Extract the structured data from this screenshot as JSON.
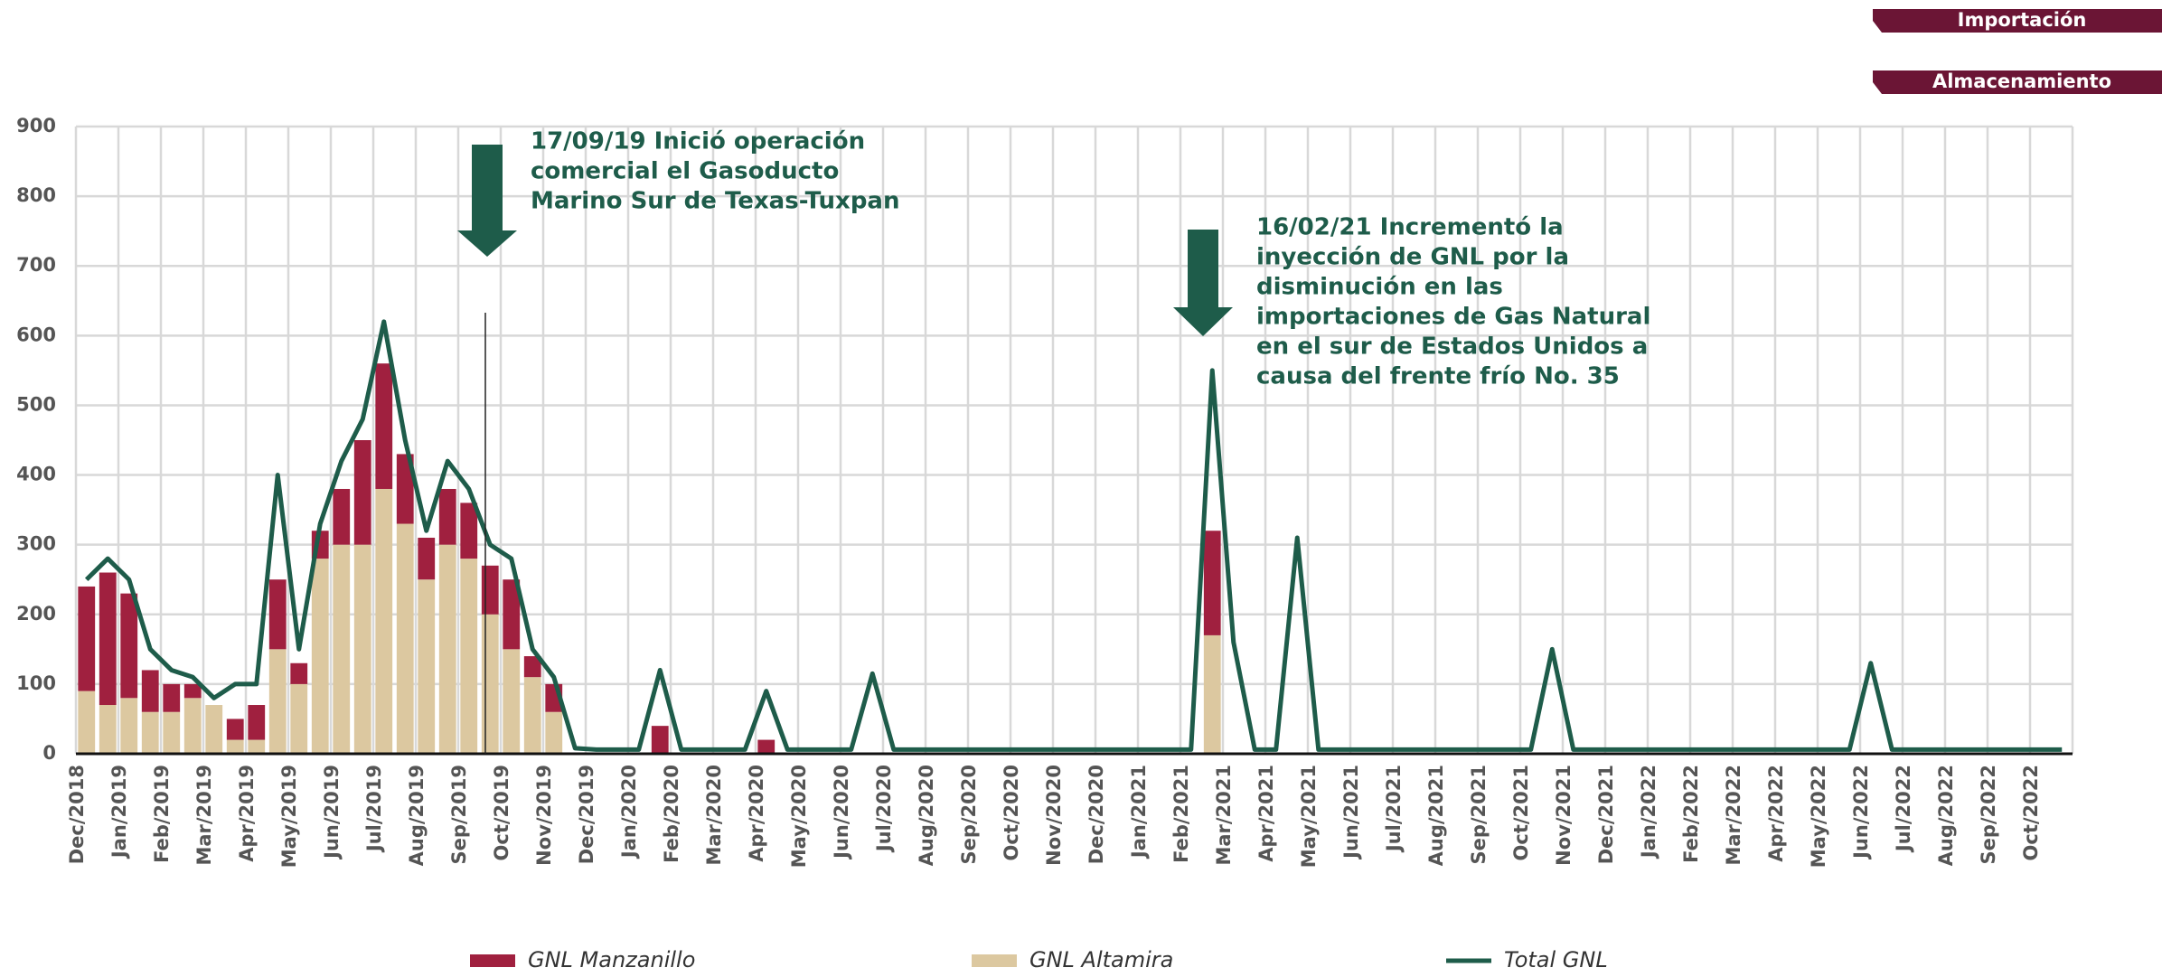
{
  "buttons": [
    "Importación",
    "Almacenamiento"
  ],
  "chart_data": {
    "type": "stacked-bar-line",
    "annotations": [
      {
        "lines": [
          "17/09/19 Inició operación",
          "comercial el Gasoducto",
          "Marino Sur de Texas-Tuxpan"
        ]
      },
      {
        "lines": [
          "16/02/21 Incrementó la",
          "inyección de GNL por la",
          "disminución en las",
          "importaciones de Gas Natural",
          "en el sur de Estados Unidos a",
          "causa del frente frío No. 35"
        ]
      }
    ],
    "categories": [
      "Dec/2018",
      null,
      "Jan/2019",
      null,
      "Feb/2019",
      null,
      "Mar/2019",
      null,
      "Apr/2019",
      null,
      "May/2019",
      null,
      "Jun/2019",
      null,
      "Jul/2019",
      null,
      "Aug/2019",
      null,
      "Sep/2019",
      null,
      "Oct/2019",
      null,
      "Nov/2019",
      null,
      "Dec/2019",
      null,
      "Jan/2020",
      null,
      "Feb/2020",
      null,
      "Mar/2020",
      null,
      "Apr/2020",
      null,
      "May/2020",
      null,
      "Jun/2020",
      null,
      "Jul/2020",
      null,
      "Aug/2020",
      null,
      "Sep/2020",
      null,
      "Oct/2020",
      null,
      "Nov/2020",
      null,
      "Dec/2020",
      null,
      "Jan/2021",
      null,
      "Feb/2021",
      null,
      "Mar/2021",
      null,
      "Apr/2021",
      null,
      "May/2021",
      null,
      "Jun/2021",
      null,
      "Jul/2021",
      null,
      "Aug/2021",
      null,
      "Sep/2021",
      null,
      "Oct/2021",
      null,
      "Nov/2021",
      null,
      "Dec/2021",
      null,
      "Jan/2022",
      null,
      "Feb/2022",
      null,
      "Mar/2022",
      null,
      "Apr/2022",
      null,
      "May/2022",
      null,
      "Jun/2022",
      null,
      "Jul/2022",
      null,
      "Aug/2022",
      null,
      "Sep/2022",
      null,
      "Oct/2022",
      null
    ],
    "series": [
      {
        "name": "GNL Manzanillo",
        "color": "#a0203f",
        "kind": "bar",
        "values": [
          150,
          190,
          150,
          60,
          40,
          20,
          0,
          30,
          50,
          100,
          30,
          40,
          80,
          150,
          180,
          100,
          60,
          80,
          80,
          70,
          100,
          30,
          40,
          0,
          0,
          0,
          0,
          40,
          0,
          0,
          0,
          0,
          20,
          0,
          0,
          0,
          0,
          0,
          0,
          0,
          0,
          0,
          0,
          0,
          0,
          0,
          0,
          0,
          0,
          0,
          0,
          0,
          0,
          150,
          0,
          0,
          0,
          0,
          0,
          0,
          0,
          0,
          0,
          0,
          0,
          0,
          0,
          0,
          0,
          0,
          0,
          0,
          0,
          0,
          0,
          0,
          0,
          0,
          0,
          0,
          0,
          0,
          0,
          0,
          0,
          0,
          0,
          0,
          0,
          0,
          0,
          0,
          0,
          0
        ]
      },
      {
        "name": "GNL Altamira",
        "color": "#dcc8a0",
        "kind": "bar",
        "values": [
          90,
          70,
          80,
          60,
          60,
          80,
          70,
          20,
          20,
          150,
          100,
          280,
          300,
          300,
          380,
          330,
          250,
          300,
          280,
          200,
          150,
          110,
          60,
          0,
          0,
          0,
          0,
          0,
          0,
          0,
          0,
          0,
          0,
          0,
          0,
          0,
          0,
          0,
          0,
          0,
          0,
          0,
          0,
          0,
          0,
          0,
          0,
          0,
          0,
          0,
          0,
          0,
          0,
          170,
          0,
          0,
          0,
          0,
          0,
          0,
          0,
          0,
          0,
          0,
          0,
          0,
          0,
          0,
          0,
          0,
          0,
          0,
          0,
          0,
          0,
          0,
          0,
          0,
          0,
          0,
          0,
          0,
          0,
          0,
          0,
          0,
          0,
          0,
          0,
          0,
          0,
          0,
          0,
          0
        ]
      },
      {
        "name": "Total GNL",
        "color": "#1e5c4a",
        "kind": "line",
        "values": [
          250,
          280,
          250,
          150,
          120,
          110,
          80,
          100,
          100,
          400,
          150,
          330,
          420,
          480,
          620,
          450,
          320,
          420,
          380,
          300,
          280,
          150,
          110,
          8,
          6,
          6,
          6,
          120,
          6,
          6,
          6,
          6,
          90,
          6,
          6,
          6,
          6,
          115,
          6,
          6,
          6,
          6,
          6,
          6,
          6,
          6,
          6,
          6,
          6,
          6,
          6,
          6,
          6,
          550,
          160,
          6,
          6,
          310,
          6,
          6,
          6,
          6,
          6,
          6,
          6,
          6,
          6,
          6,
          6,
          150,
          6,
          6,
          6,
          6,
          6,
          6,
          6,
          6,
          6,
          6,
          6,
          6,
          6,
          6,
          130,
          6,
          6,
          6,
          6,
          6,
          6,
          6,
          6,
          6
        ]
      }
    ],
    "ylim": [
      0,
      900
    ],
    "yticks": [
      0,
      100,
      200,
      300,
      400,
      500,
      600,
      700,
      800,
      900
    ],
    "grid": true
  }
}
